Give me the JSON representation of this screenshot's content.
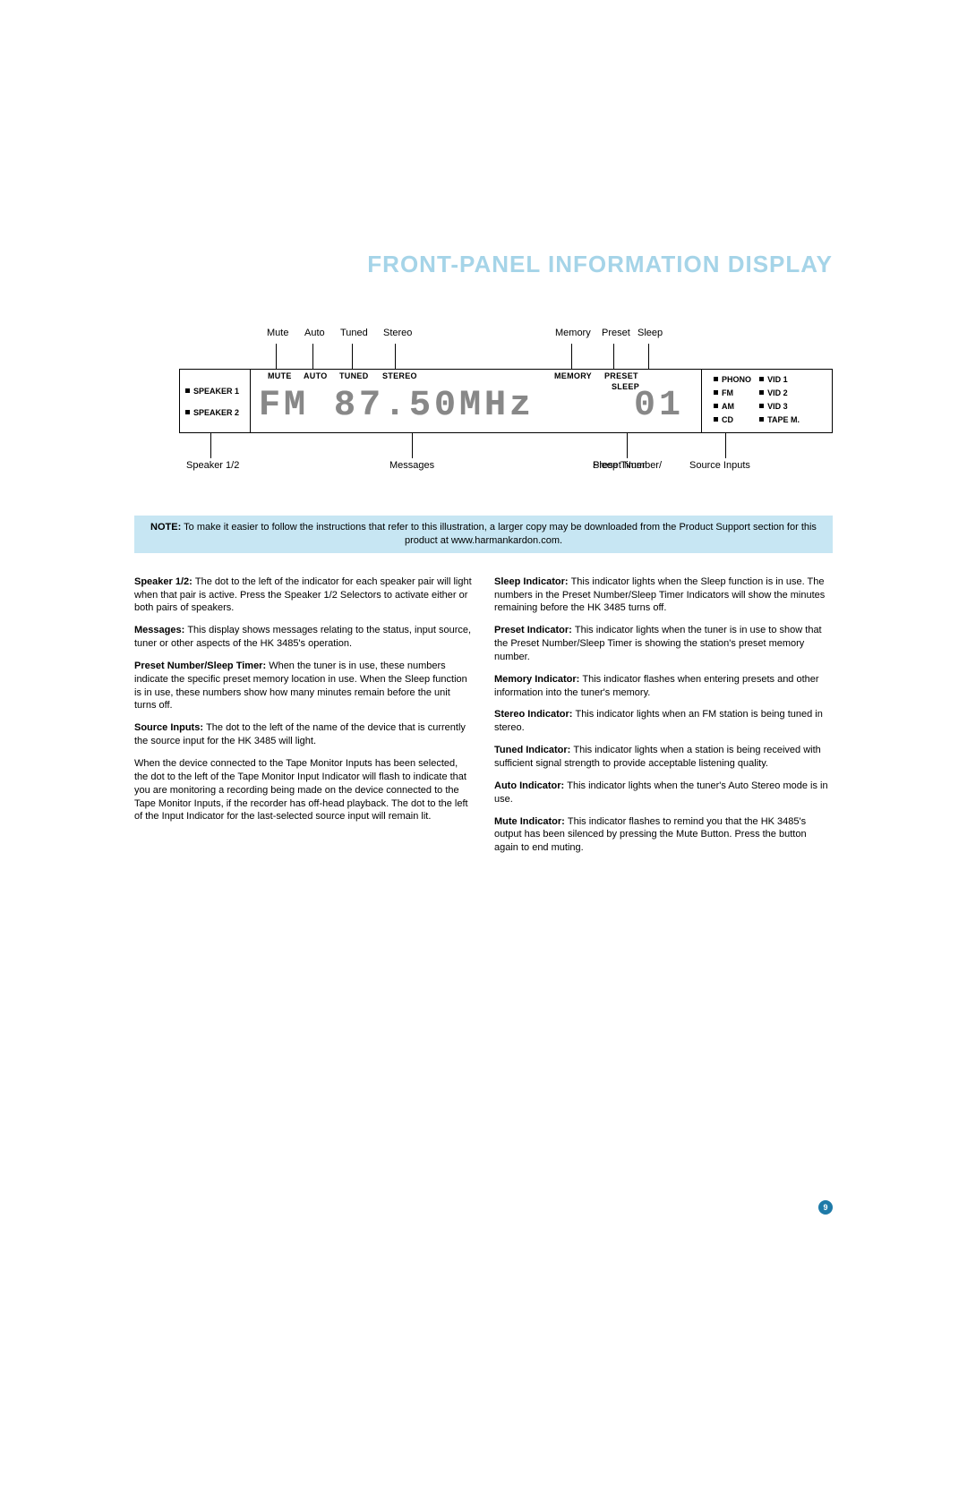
{
  "title": "FRONT-PANEL INFORMATION DISPLAY",
  "title_color": "#a5d4e8",
  "diagram": {
    "top_labels": {
      "mute": "Mute",
      "auto": "Auto",
      "tuned": "Tuned",
      "stereo": "Stereo",
      "memory": "Memory",
      "preset": "Preset",
      "sleep": "Sleep"
    },
    "lcd_top": {
      "speaker1": "SPEAKER 1",
      "speaker2": "SPEAKER 2",
      "mute": "MUTE",
      "auto": "AUTO",
      "tuned": "TUNED",
      "stereo": "STEREO",
      "memory": "MEMORY",
      "preset": "PRESET",
      "sleep": "SLEEP",
      "phono": "PHONO",
      "fm": "FM",
      "am": "AM",
      "cd": "CD",
      "vid1": "VID 1",
      "vid2": "VID 2",
      "vid3": "VID 3",
      "tapem": "TAPE M."
    },
    "lcd_main": "FM  87.50MHz",
    "lcd_preset": "01",
    "bot_labels": {
      "speaker12": "Speaker 1/2",
      "messages": "Messages",
      "preset_num": "Preset Number/",
      "sleep_timer": "Sleep Timer",
      "source_inputs": "Source Inputs"
    }
  },
  "note": {
    "label": "NOTE:",
    "text": "To make it easier to follow the instructions that refer to this illustration, a larger copy may be downloaded from the Product Support section for this product at www.harmankardon.com.",
    "bg_color": "#c7e6f3"
  },
  "left_col": [
    {
      "b": "Speaker 1/2:",
      "t": "The dot to the left of the indicator for each speaker pair will light when that pair is active. Press the Speaker 1/2 Selectors to activate either or both pairs of speakers."
    },
    {
      "b": "Messages:",
      "t": "This display shows messages relating to the status, input source, tuner or other aspects of the HK 3485's operation."
    },
    {
      "b": "Preset Number/Sleep Timer:",
      "t": "When the tuner is in use, these numbers indicate the specific preset memory location in use. When the Sleep function is in use, these numbers show how many minutes remain before the unit turns off."
    },
    {
      "b": "Source Inputs:",
      "t": "The dot to the left of the name of the device that is currently the source input for the HK 3485 will light."
    },
    {
      "b": "",
      "t": "When the device connected to the Tape Monitor Inputs has been selected, the dot to the left of the Tape Monitor Input Indicator will flash to indicate that you are monitoring a recording being made on the device connected to the Tape Monitor Inputs, if the recorder has off-head playback. The dot to the left of the Input Indicator for the last-selected source input will remain lit."
    }
  ],
  "right_col": [
    {
      "b": "Sleep Indicator:",
      "t": "This indicator lights when the Sleep function is in use. The numbers in the Preset Number/Sleep Timer Indicators will show the minutes remaining before the HK 3485 turns off."
    },
    {
      "b": "Preset Indicator:",
      "t": "This indicator lights when the tuner is in use to show that the Preset Number/Sleep Timer is showing the station's preset memory number."
    },
    {
      "b": "Memory Indicator:",
      "t": "This indicator flashes when entering presets and other information into the tuner's memory."
    },
    {
      "b": "Stereo Indicator:",
      "t": "This indicator lights when an FM station is being tuned in stereo."
    },
    {
      "b": "Tuned Indicator:",
      "t": "This indicator lights when a station is being received with sufficient signal strength to provide acceptable listening quality."
    },
    {
      "b": "Auto Indicator:",
      "t": "This indicator lights when the tuner's Auto Stereo mode is in use."
    },
    {
      "b": "Mute Indicator:",
      "t": "This indicator flashes to remind you that the HK 3485's output has been silenced by pressing the Mute Button. Press the button again to end muting."
    }
  ],
  "page_number": "9",
  "page_num_bg": "#1e7aa8"
}
